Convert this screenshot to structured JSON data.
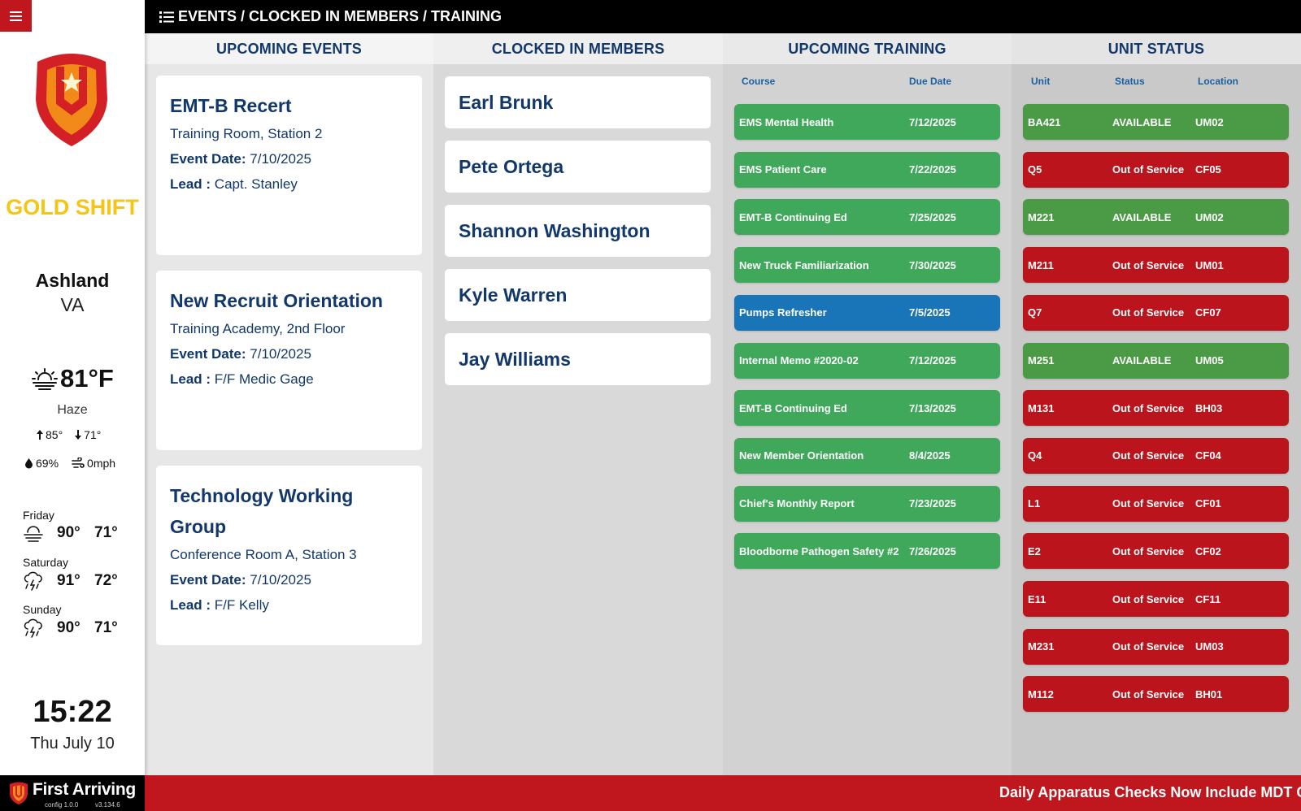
{
  "header": {
    "breadcrumb": "EVENTS / CLOCKED IN MEMBERS / TRAINING"
  },
  "sidebar": {
    "shift": "GOLD SHIFT",
    "city": "Ashland",
    "state": "VA",
    "weather": {
      "temp": "81°F",
      "condition": "Haze",
      "high": "85°",
      "low": "71°",
      "humidity": "69%",
      "wind": "0mph"
    },
    "forecast": [
      {
        "day": "Friday",
        "high": "90°",
        "low": "71°",
        "icon": "fog-icon"
      },
      {
        "day": "Saturday",
        "high": "91°",
        "low": "72°",
        "icon": "thunderstorm-icon"
      },
      {
        "day": "Sunday",
        "high": "90°",
        "low": "71°",
        "icon": "thunderstorm-icon"
      }
    ],
    "clock": "15:22",
    "date": "Thu July 10"
  },
  "columns": {
    "events": "UPCOMING EVENTS",
    "members": "CLOCKED IN MEMBERS",
    "training": "UPCOMING TRAINING",
    "units": "UNIT STATUS"
  },
  "labels": {
    "event_date": "Event Date:",
    "lead": "Lead :"
  },
  "events": [
    {
      "title": "EMT-B Recert",
      "location": "Training Room, Station 2",
      "date": "7/10/2025",
      "lead": "Capt. Stanley"
    },
    {
      "title": "New Recruit Orientation",
      "location": "Training Academy, 2nd Floor",
      "date": "7/10/2025",
      "lead": "F/F Medic Gage"
    },
    {
      "title_line1": "Technology Working",
      "title_line2": "Group",
      "location": "Conference Room A, Station 3",
      "date": "7/10/2025",
      "lead": "F/F Kelly"
    }
  ],
  "members": [
    "Earl Brunk",
    "Pete Ortega",
    "Shannon Washington",
    "Kyle Warren",
    "Jay Williams"
  ],
  "training": {
    "headers": {
      "course": "Course",
      "due": "Due Date"
    },
    "rows": [
      {
        "course": "EMS Mental Health",
        "due": "7/12/2025",
        "color": "#3fa85b"
      },
      {
        "course": "EMS Patient Care",
        "due": "7/22/2025",
        "color": "#3fa85b"
      },
      {
        "course": "EMT-B Continuing Ed",
        "due": "7/25/2025",
        "color": "#3fa85b"
      },
      {
        "course": "New Truck Familiarization",
        "due": "7/30/2025",
        "color": "#3fa85b"
      },
      {
        "course": "Pumps Refresher",
        "due": "7/5/2025",
        "color": "#1a74b8"
      },
      {
        "course": "Internal Memo #2020-02",
        "due": "7/12/2025",
        "color": "#3fa85b"
      },
      {
        "course": "EMT-B Continuing Ed",
        "due": "7/13/2025",
        "color": "#3fa85b"
      },
      {
        "course": "New Member Orientation",
        "due": "8/4/2025",
        "color": "#3fa85b"
      },
      {
        "course": "Chief's Monthly Report",
        "due": "7/23/2025",
        "color": "#3fa85b"
      },
      {
        "course": "Bloodborne Pathogen Safety #2",
        "due": "7/26/2025",
        "color": "#3fa85b"
      }
    ]
  },
  "units": {
    "headers": {
      "unit": "Unit",
      "status": "Status",
      "location": "Location"
    },
    "rows": [
      {
        "unit": "BA421",
        "status": "AVAILABLE",
        "location": "UM02",
        "color": "#4b9a45"
      },
      {
        "unit": "Q5",
        "status": "Out of Service",
        "location": "CF05",
        "color": "#bb141c"
      },
      {
        "unit": "M221",
        "status": "AVAILABLE",
        "location": "UM02",
        "color": "#4b9a45"
      },
      {
        "unit": "M211",
        "status": "Out of Service",
        "location": "UM01",
        "color": "#bb141c"
      },
      {
        "unit": "Q7",
        "status": "Out of Service",
        "location": "CF07",
        "color": "#bb141c"
      },
      {
        "unit": "M251",
        "status": "AVAILABLE",
        "location": "UM05",
        "color": "#4b9a45"
      },
      {
        "unit": "M131",
        "status": "Out of Service",
        "location": "BH03",
        "color": "#bb141c"
      },
      {
        "unit": "Q4",
        "status": "Out of Service",
        "location": "CF04",
        "color": "#bb141c"
      },
      {
        "unit": "L1",
        "status": "Out of Service",
        "location": "CF01",
        "color": "#bb141c"
      },
      {
        "unit": "E2",
        "status": "Out of Service",
        "location": "CF02",
        "color": "#bb141c"
      },
      {
        "unit": "E11",
        "status": "Out of Service",
        "location": "CF11",
        "color": "#bb141c"
      },
      {
        "unit": "M231",
        "status": "Out of Service",
        "location": "UM03",
        "color": "#bb141c"
      },
      {
        "unit": "M112",
        "status": "Out of Service",
        "location": "BH01",
        "color": "#bb141c"
      }
    ]
  },
  "footer": {
    "brand": "First Arriving",
    "config": "config 1.0.0",
    "version": "v3.134.6",
    "ticker": "Daily Apparatus Checks Now Include MDT Comm"
  },
  "colors": {
    "brand_red": "#c0161d",
    "navy_text": "#12386b",
    "shift_gold": "#f6c514",
    "available_green": "#4b9a45",
    "out_of_service_red": "#bb141c",
    "training_green": "#3fa85b",
    "training_blue": "#1a74b8"
  }
}
